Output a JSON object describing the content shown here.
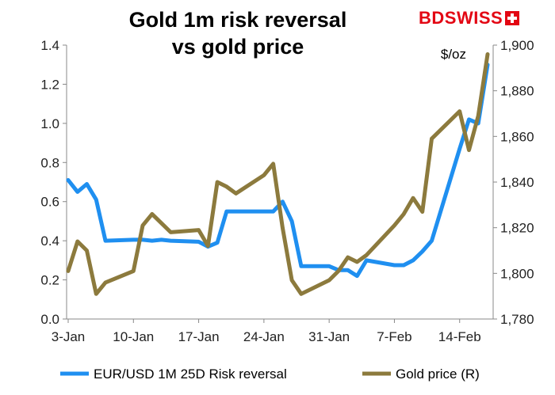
{
  "brand": {
    "logo_text": "BDSWISS",
    "logo_icon": "swiss-cross-icon",
    "color": "#e30613"
  },
  "chart_data": {
    "type": "line",
    "title_lines": [
      "Gold 1m risk reversal",
      "vs gold price"
    ],
    "x_tick_labels": [
      "3-Jan",
      "10-Jan",
      "17-Jan",
      "24-Jan",
      "31-Jan",
      "7-Feb",
      "14-Feb"
    ],
    "y_left": {
      "min": 0.0,
      "max": 1.4,
      "ticks": [
        0.0,
        0.2,
        0.4,
        0.6,
        0.8,
        1.0,
        1.2,
        1.4
      ],
      "tick_decimals": 1
    },
    "y_right": {
      "min": 1780,
      "max": 1900,
      "ticks": [
        1780,
        1800,
        1820,
        1840,
        1860,
        1880,
        1900
      ],
      "unit": "$/oz"
    },
    "series": [
      {
        "name": "EUR/USD 1M 25D Risk reversal",
        "axis": "left",
        "color": "#1f8ff0",
        "points": [
          [
            "2022-01-03",
            0.71
          ],
          [
            "2022-01-04",
            0.65
          ],
          [
            "2022-01-05",
            0.69
          ],
          [
            "2022-01-06",
            0.61
          ],
          [
            "2022-01-07",
            0.4
          ],
          [
            "2022-01-10",
            0.405
          ],
          [
            "2022-01-11",
            0.405
          ],
          [
            "2022-01-12",
            0.4
          ],
          [
            "2022-01-13",
            0.405
          ],
          [
            "2022-01-14",
            0.4
          ],
          [
            "2022-01-17",
            0.395
          ],
          [
            "2022-01-18",
            0.37
          ],
          [
            "2022-01-19",
            0.39
          ],
          [
            "2022-01-20",
            0.55
          ],
          [
            "2022-01-21",
            0.55
          ],
          [
            "2022-01-24",
            0.55
          ],
          [
            "2022-01-25",
            0.55
          ],
          [
            "2022-01-26",
            0.6
          ],
          [
            "2022-01-27",
            0.5
          ],
          [
            "2022-01-28",
            0.27
          ],
          [
            "2022-01-31",
            0.27
          ],
          [
            "2022-02-01",
            0.25
          ],
          [
            "2022-02-02",
            0.25
          ],
          [
            "2022-02-03",
            0.22
          ],
          [
            "2022-02-04",
            0.3
          ],
          [
            "2022-02-07",
            0.275
          ],
          [
            "2022-02-08",
            0.275
          ],
          [
            "2022-02-09",
            0.3
          ],
          [
            "2022-02-10",
            0.345
          ],
          [
            "2022-02-11",
            0.4
          ],
          [
            "2022-02-14",
            0.87
          ],
          [
            "2022-02-15",
            1.02
          ],
          [
            "2022-02-16",
            1.0
          ],
          [
            "2022-02-17",
            1.3
          ]
        ]
      },
      {
        "name": "Gold price (R)",
        "axis": "right",
        "color": "#8c7a3d",
        "points": [
          [
            "2022-01-03",
            1801
          ],
          [
            "2022-01-04",
            1814
          ],
          [
            "2022-01-05",
            1810
          ],
          [
            "2022-01-06",
            1791
          ],
          [
            "2022-01-07",
            1796
          ],
          [
            "2022-01-10",
            1801
          ],
          [
            "2022-01-11",
            1821
          ],
          [
            "2022-01-12",
            1826
          ],
          [
            "2022-01-13",
            1822
          ],
          [
            "2022-01-14",
            1818
          ],
          [
            "2022-01-17",
            1819
          ],
          [
            "2022-01-18",
            1812
          ],
          [
            "2022-01-19",
            1840
          ],
          [
            "2022-01-20",
            1838
          ],
          [
            "2022-01-21",
            1835
          ],
          [
            "2022-01-24",
            1843
          ],
          [
            "2022-01-25",
            1848
          ],
          [
            "2022-01-26",
            1820
          ],
          [
            "2022-01-27",
            1797
          ],
          [
            "2022-01-28",
            1791
          ],
          [
            "2022-01-31",
            1797
          ],
          [
            "2022-02-01",
            1801
          ],
          [
            "2022-02-02",
            1807
          ],
          [
            "2022-02-03",
            1805
          ],
          [
            "2022-02-04",
            1808
          ],
          [
            "2022-02-07",
            1821
          ],
          [
            "2022-02-08",
            1826
          ],
          [
            "2022-02-09",
            1833
          ],
          [
            "2022-02-10",
            1827
          ],
          [
            "2022-02-11",
            1859
          ],
          [
            "2022-02-14",
            1871
          ],
          [
            "2022-02-15",
            1854
          ],
          [
            "2022-02-16",
            1869
          ],
          [
            "2022-02-17",
            1896
          ]
        ]
      }
    ],
    "legend_position": "bottom",
    "grid": false
  }
}
